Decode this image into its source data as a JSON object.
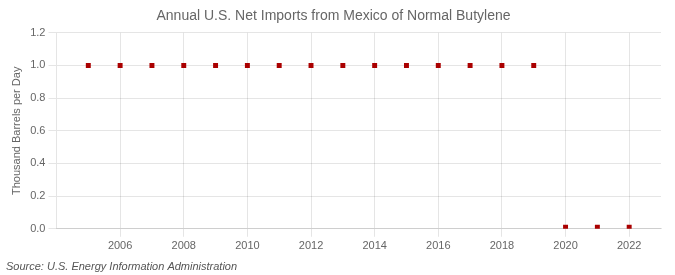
{
  "chart_data": {
    "type": "scatter",
    "title": "Annual U.S. Net Imports from Mexico of Normal Butylene",
    "ylabel": "Thousand Barrels per Day",
    "annotations": [
      "Source: U.S. Energy Information Administration"
    ],
    "x": [
      2005,
      2006,
      2007,
      2008,
      2009,
      2010,
      2011,
      2012,
      2013,
      2014,
      2015,
      2016,
      2017,
      2018,
      2019,
      2020,
      2021,
      2022
    ],
    "values": [
      1.0,
      1.0,
      1.0,
      1.0,
      1.0,
      1.0,
      1.0,
      1.0,
      1.0,
      1.0,
      1.0,
      1.0,
      1.0,
      1.0,
      1.0,
      0.01,
      0.01,
      0.01
    ],
    "color": "#AA0000",
    "marker": "square",
    "xlim": [
      2004.0,
      2023.0
    ],
    "xticks": [
      2006,
      2008,
      2010,
      2012,
      2014,
      2016,
      2018,
      2020,
      2022
    ],
    "ylim": [
      0.0,
      1.2
    ],
    "yticks": [
      {
        "value": 0.0,
        "label": "0.0"
      },
      0.2,
      0.4,
      0.6,
      0.8,
      {
        "value": 1.0,
        "label": "1.0"
      },
      1.2
    ],
    "grid": true
  }
}
